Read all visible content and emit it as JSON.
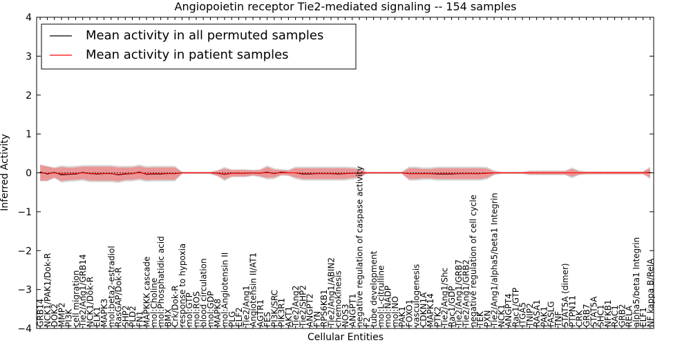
{
  "chart_data": {
    "type": "line",
    "title": "Angiopoietin receptor Tie2-mediated signaling -- 154 samples",
    "xlabel": "Cellular Entities",
    "ylabel": "Inferred Activity",
    "ylim": [
      -4,
      4
    ],
    "yticks": [
      -4,
      -3,
      -2,
      -1,
      0,
      1,
      2,
      3,
      4
    ],
    "legend": {
      "placement": "top-left"
    },
    "colors": {
      "permuted": "#000000",
      "patient": "#ff0000",
      "patient_band": "#f08080",
      "permuted_band": "#cccccc"
    },
    "categories": [
      "GRB14",
      "NCK1/PAK1/Dok-R",
      "DOK2",
      "MMP2",
      "PI3K",
      "cell migration",
      "Tie2/Ang1/GRB14",
      "NCK1/Dok-R",
      "ELK1",
      "MAPK3",
      "mol:beta2-estradiol",
      "RasGAP/Dok-R",
      "SHP2",
      "PLD2",
      "FN1",
      "MAPKKK cascade",
      "mol:Choline",
      "mol:Phosphatidic acid",
      "BMX",
      "Crk/Dok-R",
      "response to hypoxia",
      "mol:GTP",
      "mol:ROS",
      "blood circulation",
      "mol:GDP",
      "MAPK8",
      "mol:Angiotensin II",
      "PLG",
      "ELF2",
      "Tie2/Ang1",
      "Angiotensin II/AT1",
      "AGTR1",
      "FES",
      "PI3K/SRC",
      "PIK3R1",
      "AKT1",
      "Tie2/Ang2",
      "Tie2/SHP2",
      "ANGPT2",
      "FYN",
      "RPS6KB1",
      "Tie2/Ang1/ABIN2",
      "chemokinesis",
      "NOS3",
      "ANGPT1",
      "negative regulation of caspase activity",
      "F2",
      "tube development",
      "mol:L-citrulline",
      "mol:NADP",
      "mol:NO",
      "PAK1",
      "FOXO1",
      "vasculogenesis",
      "CDKN1A",
      "MAPK14",
      "PTK2",
      "Tie2/Ang1/Shc",
      "Rac1/GDP",
      "Tie2/Ang1/GRB7",
      "Tie2/Ang1/GRB2",
      "negative regulation of cell cycle",
      "TEK",
      "PXN",
      "Tie2/Ang1/alpha5/beta1 Integrin",
      "NCK1",
      "ANGPT4",
      "Rac1/GTP",
      "ITGA5",
      "TNIP2",
      "RASA1",
      "PAK1",
      "FASLG",
      "TNF",
      "STAT5A (dimer)",
      "PTPN11",
      "CRK",
      "GRB7",
      "STAT5A",
      "SHC1",
      "NFKB1",
      "RAC1",
      "GRB2",
      "RELA",
      "alpha5/beta1 Integrin",
      "ELF1",
      "NF kappa B/RelA"
    ],
    "series": [
      {
        "name": "Mean activity in all permuted samples",
        "color": "#000000",
        "values": [
          0.02,
          -0.03,
          0.01,
          -0.05,
          -0.04,
          -0.03,
          0.01,
          -0.02,
          -0.03,
          -0.02,
          -0.02,
          -0.05,
          -0.03,
          -0.02,
          0.02,
          -0.04,
          -0.03,
          -0.03,
          -0.02,
          -0.02,
          0.0,
          0.0,
          0.0,
          0.0,
          0.0,
          -0.01,
          -0.04,
          -0.01,
          -0.01,
          -0.01,
          0.0,
          -0.01,
          0.02,
          -0.02,
          0.02,
          0.0,
          0.0,
          -0.03,
          -0.03,
          -0.02,
          -0.02,
          -0.02,
          -0.03,
          -0.02,
          -0.01,
          -0.01,
          0.0,
          0.0,
          0.0,
          0.0,
          0.0,
          0.0,
          -0.02,
          -0.02,
          -0.02,
          -0.02,
          -0.03,
          -0.03,
          -0.03,
          -0.02,
          -0.02,
          -0.02,
          -0.02,
          -0.01,
          0.0,
          0.0,
          0.0,
          0.0,
          0.0,
          0.0,
          0.0,
          0.0,
          0.0,
          0.0,
          0.0,
          0.0,
          0.0,
          0.0,
          0.0,
          0.0,
          0.0,
          0.0,
          0.0,
          0.0,
          0.0,
          0.0,
          0.01
        ]
      },
      {
        "name": "Mean activity in patient samples",
        "color": "#ff0000",
        "values": [
          0.0,
          -0.02,
          0.0,
          -0.03,
          -0.03,
          -0.02,
          0.0,
          -0.02,
          -0.02,
          -0.02,
          -0.02,
          -0.04,
          -0.02,
          -0.02,
          0.01,
          -0.03,
          -0.02,
          -0.02,
          -0.02,
          -0.02,
          0.0,
          0.0,
          0.0,
          0.0,
          0.0,
          -0.01,
          -0.03,
          -0.01,
          -0.01,
          -0.01,
          0.0,
          -0.01,
          0.01,
          -0.02,
          0.01,
          0.0,
          0.0,
          -0.02,
          -0.02,
          -0.02,
          -0.02,
          -0.02,
          -0.02,
          -0.02,
          -0.01,
          -0.01,
          0.0,
          0.0,
          0.0,
          0.0,
          0.0,
          0.0,
          -0.02,
          -0.02,
          -0.02,
          -0.02,
          -0.02,
          -0.02,
          -0.02,
          -0.02,
          -0.02,
          -0.02,
          -0.02,
          -0.01,
          0.0,
          0.0,
          0.0,
          0.0,
          0.0,
          0.0,
          0.0,
          0.0,
          0.0,
          0.0,
          0.0,
          0.0,
          0.0,
          0.0,
          0.0,
          0.0,
          0.0,
          0.0,
          0.0,
          0.0,
          0.0,
          0.0,
          0.0
        ]
      }
    ],
    "patient_band_halfwidth": [
      0.2,
      0.18,
      0.12,
      0.18,
      0.16,
      0.16,
      0.16,
      0.18,
      0.18,
      0.18,
      0.18,
      0.18,
      0.16,
      0.16,
      0.16,
      0.16,
      0.16,
      0.16,
      0.16,
      0.16,
      0.02,
      0.02,
      0.02,
      0.02,
      0.02,
      0.06,
      0.14,
      0.08,
      0.08,
      0.08,
      0.06,
      0.08,
      0.14,
      0.1,
      0.06,
      0.06,
      0.12,
      0.14,
      0.14,
      0.14,
      0.14,
      0.14,
      0.14,
      0.14,
      0.12,
      0.1,
      0.02,
      0.02,
      0.02,
      0.02,
      0.02,
      0.02,
      0.14,
      0.14,
      0.12,
      0.12,
      0.14,
      0.14,
      0.14,
      0.14,
      0.14,
      0.14,
      0.14,
      0.12,
      0.04,
      0.02,
      0.02,
      0.02,
      0.02,
      0.04,
      0.04,
      0.04,
      0.04,
      0.04,
      0.04,
      0.1,
      0.04,
      0.03,
      0.03,
      0.03,
      0.03,
      0.03,
      0.03,
      0.03,
      0.03,
      0.03,
      0.12
    ],
    "permuted_band_halfwidth": [
      0.22,
      0.2,
      0.14,
      0.22,
      0.2,
      0.2,
      0.2,
      0.22,
      0.22,
      0.22,
      0.22,
      0.22,
      0.2,
      0.2,
      0.2,
      0.2,
      0.2,
      0.2,
      0.2,
      0.2,
      0.03,
      0.03,
      0.03,
      0.03,
      0.03,
      0.08,
      0.18,
      0.1,
      0.1,
      0.1,
      0.08,
      0.1,
      0.18,
      0.14,
      0.08,
      0.08,
      0.16,
      0.18,
      0.18,
      0.18,
      0.18,
      0.18,
      0.18,
      0.18,
      0.16,
      0.14,
      0.03,
      0.03,
      0.03,
      0.03,
      0.03,
      0.03,
      0.18,
      0.18,
      0.16,
      0.16,
      0.18,
      0.18,
      0.18,
      0.18,
      0.18,
      0.18,
      0.18,
      0.16,
      0.06,
      0.03,
      0.03,
      0.03,
      0.03,
      0.06,
      0.06,
      0.06,
      0.06,
      0.06,
      0.06,
      0.14,
      0.06,
      0.04,
      0.04,
      0.04,
      0.04,
      0.04,
      0.04,
      0.04,
      0.04,
      0.04,
      0.16
    ]
  }
}
